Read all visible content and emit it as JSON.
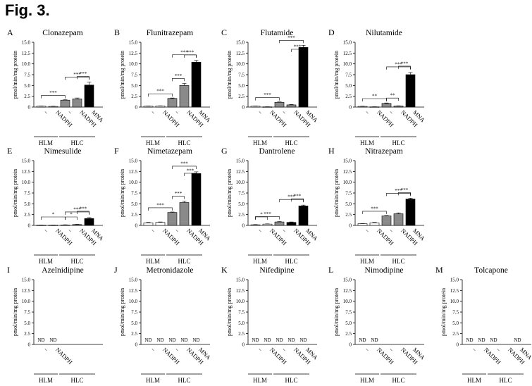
{
  "figure_title": "Fig. 3.",
  "shared": {
    "ylabel": "pmol/min/mg protein",
    "yticks": [
      "0",
      "2.5",
      "5.0",
      "7.5",
      "10.0",
      "12.5",
      "15.0"
    ],
    "group_labels": [
      "HLM",
      "HLC"
    ],
    "nd_label": "ND"
  },
  "chart_data": [
    {
      "letter": "A",
      "title": "Clonazepam",
      "type": "bar",
      "ylim": [
        0,
        15
      ],
      "categories": [
        "−",
        "NADPH",
        "−",
        "NADPH",
        "MNA"
      ],
      "groups": [
        "HLM",
        "HLM",
        "HLC",
        "HLC",
        "HLC"
      ],
      "values": [
        0.2,
        0.15,
        1.6,
        1.9,
        5.1
      ],
      "errors": [
        0.05,
        0.05,
        0.1,
        0.2,
        0.7
      ],
      "bar_colors": [
        "#ffffff",
        "#ffffff",
        "#8a8a8a",
        "#8a8a8a",
        "#000000"
      ],
      "significance": [
        {
          "from": 0,
          "to": 2,
          "label": "***"
        },
        {
          "from": 2,
          "to": 4,
          "label": "***"
        },
        {
          "from": 3,
          "to": 4,
          "label": "***"
        }
      ]
    },
    {
      "letter": "B",
      "title": "Flunitrazepam",
      "type": "bar",
      "ylim": [
        0,
        15
      ],
      "categories": [
        "−",
        "NADPH",
        "−",
        "NADPH",
        "MNA"
      ],
      "groups": [
        "HLM",
        "HLM",
        "HLC",
        "HLC",
        "HLC"
      ],
      "values": [
        0.2,
        0.25,
        2.0,
        5.0,
        10.4
      ],
      "errors": [
        0.05,
        0.05,
        0.1,
        0.5,
        0.4
      ],
      "bar_colors": [
        "#ffffff",
        "#ffffff",
        "#8a8a8a",
        "#8a8a8a",
        "#000000"
      ],
      "significance": [
        {
          "from": 0,
          "to": 2,
          "label": "***"
        },
        {
          "from": 2,
          "to": 3,
          "label": "***"
        },
        {
          "from": 2,
          "to": 4,
          "label": "***"
        },
        {
          "from": 3,
          "to": 4,
          "label": "***"
        }
      ]
    },
    {
      "letter": "C",
      "title": "Flutamide",
      "type": "bar",
      "ylim": [
        0,
        15
      ],
      "categories": [
        "−",
        "NADPH",
        "−",
        "NADPH",
        "MNA"
      ],
      "groups": [
        "HLM",
        "HLM",
        "HLC",
        "HLC",
        "HLC"
      ],
      "values": [
        0.2,
        0.05,
        1.1,
        0.5,
        13.8
      ],
      "errors": [
        0.05,
        0.02,
        0.1,
        0.1,
        0.5
      ],
      "bar_colors": [
        "#ffffff",
        "#ffffff",
        "#8a8a8a",
        "#8a8a8a",
        "#000000"
      ],
      "significance": [
        {
          "from": 0,
          "to": 2,
          "label": "***"
        },
        {
          "from": 2,
          "to": 4,
          "label": "***"
        },
        {
          "from": 3,
          "to": 4,
          "label": "***"
        }
      ]
    },
    {
      "letter": "D",
      "title": "Nilutamide",
      "type": "bar",
      "ylim": [
        0,
        15
      ],
      "categories": [
        "−",
        "NADPH",
        "−",
        "NADPH",
        "MNA"
      ],
      "groups": [
        "HLM",
        "HLM",
        "HLC",
        "HLC",
        "HLC"
      ],
      "values": [
        0.15,
        0.05,
        0.85,
        0.25,
        7.5
      ],
      "errors": [
        0.05,
        0.02,
        0.1,
        0.05,
        0.5
      ],
      "bar_colors": [
        "#ffffff",
        "#ffffff",
        "#8a8a8a",
        "#8a8a8a",
        "#000000"
      ],
      "significance": [
        {
          "from": 0,
          "to": 2,
          "label": "**"
        },
        {
          "from": 2,
          "to": 3,
          "label": "**"
        },
        {
          "from": 2,
          "to": 4,
          "label": "***"
        },
        {
          "from": 3,
          "to": 4,
          "label": "***"
        }
      ]
    },
    {
      "letter": "E",
      "title": "Nimesulide",
      "type": "bar",
      "ylim": [
        0,
        15
      ],
      "categories": [
        "−",
        "NADPH",
        "−",
        "NADPH",
        "MNA"
      ],
      "groups": [
        "HLM",
        "HLM",
        "HLC",
        "HLC",
        "HLC"
      ],
      "values": [
        0.05,
        0.05,
        0.1,
        0.2,
        1.6
      ],
      "errors": [
        0.02,
        0.02,
        0.05,
        0.05,
        0.2
      ],
      "bar_colors": [
        "#ffffff",
        "#ffffff",
        "#8a8a8a",
        "#8a8a8a",
        "#000000"
      ],
      "significance": [
        {
          "from": 0,
          "to": 2,
          "label": "*"
        },
        {
          "from": 2,
          "to": 3,
          "label": "*"
        },
        {
          "from": 2,
          "to": 4,
          "label": "***"
        },
        {
          "from": 3,
          "to": 4,
          "label": "***"
        }
      ]
    },
    {
      "letter": "F",
      "title": "Nimetazepam",
      "type": "bar",
      "ylim": [
        0,
        15
      ],
      "categories": [
        "−",
        "NADPH",
        "−",
        "NADPH",
        "MNA"
      ],
      "groups": [
        "HLM",
        "HLM",
        "HLC",
        "HLC",
        "HLC"
      ],
      "values": [
        0.6,
        0.7,
        3.0,
        5.3,
        12.0
      ],
      "errors": [
        0.1,
        0.1,
        0.1,
        0.3,
        0.4
      ],
      "bar_colors": [
        "#ffffff",
        "#ffffff",
        "#8a8a8a",
        "#8a8a8a",
        "#000000"
      ],
      "significance": [
        {
          "from": 0,
          "to": 2,
          "label": "***"
        },
        {
          "from": 2,
          "to": 3,
          "label": "***"
        },
        {
          "from": 2,
          "to": 4,
          "label": "***"
        },
        {
          "from": 3,
          "to": 4,
          "label": "***"
        }
      ]
    },
    {
      "letter": "G",
      "title": "Dantrolene",
      "type": "bar",
      "ylim": [
        0,
        15
      ],
      "categories": [
        "−",
        "NADPH",
        "−",
        "NADPH",
        "MNA"
      ],
      "groups": [
        "HLM",
        "HLM",
        "HLC",
        "HLC",
        "HLC"
      ],
      "values": [
        0.15,
        0.3,
        0.8,
        0.7,
        4.5
      ],
      "errors": [
        0.05,
        0.05,
        0.1,
        0.1,
        0.2
      ],
      "bar_colors": [
        "#ffffff",
        "#ffffff",
        "#8a8a8a",
        "#000000",
        "#000000"
      ],
      "significance": [
        {
          "from": 0,
          "to": 1,
          "label": "*"
        },
        {
          "from": 0,
          "to": 2,
          "label": "***"
        },
        {
          "from": 2,
          "to": 4,
          "label": "***"
        },
        {
          "from": 3,
          "to": 4,
          "label": "***"
        }
      ]
    },
    {
      "letter": "H",
      "title": "Nitrazepam",
      "type": "bar",
      "ylim": [
        0,
        15
      ],
      "categories": [
        "−",
        "NADPH",
        "−",
        "NADPH",
        "MNA"
      ],
      "groups": [
        "HLM",
        "HLM",
        "HLC",
        "HLC",
        "HLC"
      ],
      "values": [
        0.4,
        0.6,
        2.2,
        2.7,
        6.1
      ],
      "errors": [
        0.05,
        0.1,
        0.1,
        0.2,
        0.2
      ],
      "bar_colors": [
        "#ffffff",
        "#ffffff",
        "#8a8a8a",
        "#8a8a8a",
        "#000000"
      ],
      "significance": [
        {
          "from": 0,
          "to": 2,
          "label": "***"
        },
        {
          "from": 2,
          "to": 4,
          "label": "***"
        },
        {
          "from": 3,
          "to": 4,
          "label": "***"
        }
      ]
    },
    {
      "letter": "I",
      "title": "Azelnidipine",
      "type": "bar",
      "categories": [
        "−",
        "NADPH"
      ],
      "groups": [
        "HLM",
        "HLM"
      ],
      "values": [
        "ND",
        "ND"
      ]
    },
    {
      "letter": "J",
      "title": "Metronidazole",
      "type": "bar",
      "categories": [
        "−",
        "NADPH",
        "−",
        "NADPH",
        "MNA"
      ],
      "groups": [
        "HLM",
        "HLM",
        "HLC",
        "HLC",
        "HLC"
      ],
      "values": [
        "ND",
        "ND",
        "ND",
        "ND",
        "ND"
      ]
    },
    {
      "letter": "K",
      "title": "Nifedipine",
      "type": "bar",
      "categories": [
        "−",
        "NADPH",
        "−",
        "NADPH",
        "MNA"
      ],
      "groups": [
        "HLM",
        "HLM",
        "HLC",
        "HLC",
        "HLC"
      ],
      "values": [
        "ND",
        "ND",
        "ND",
        "ND",
        "ND"
      ]
    },
    {
      "letter": "L",
      "title": "Nimodipine",
      "type": "bar",
      "categories": [
        "−",
        "NADPH",
        "−",
        "NADPH",
        "MNA"
      ],
      "groups": [
        "HLM",
        "HLM",
        "HLC",
        "HLC",
        "HLC"
      ],
      "values": [
        "ND",
        "ND",
        "",
        "",
        ""
      ]
    },
    {
      "letter": "M",
      "title": "Tolcapone",
      "type": "bar",
      "categories": [
        "−",
        "NADPH",
        "−",
        "NADPH",
        "MNA"
      ],
      "groups": [
        "HLM",
        "HLM",
        "HLC",
        "HLC",
        "HLC"
      ],
      "values": [
        "ND",
        "ND",
        "ND",
        "",
        "ND"
      ]
    }
  ]
}
